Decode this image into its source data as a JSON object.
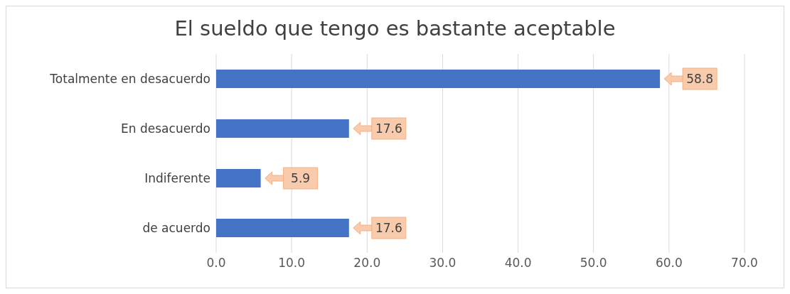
{
  "chart_data": {
    "type": "bar",
    "orientation": "horizontal",
    "title": "El sueldo que tengo es bastante aceptable",
    "categories": [
      "Totalmente en desacuerdo",
      "En desacuerdo",
      "Indiferente",
      "de acuerdo"
    ],
    "values": [
      58.8,
      17.6,
      5.9,
      17.6
    ],
    "color": "#4472c4",
    "xlim": [
      0,
      70
    ],
    "xticks": [
      {
        "value": 0,
        "label": "0.0"
      },
      {
        "value": 10,
        "label": "10.0"
      },
      {
        "value": 20,
        "label": "20.0"
      },
      {
        "value": 30,
        "label": "30.0"
      },
      {
        "value": 40,
        "label": "40.0"
      },
      {
        "value": 50,
        "label": "50.0"
      },
      {
        "value": 60,
        "label": "60.0"
      },
      {
        "value": 70,
        "label": "70.0"
      }
    ],
    "grid": "x",
    "data_labels": true
  }
}
